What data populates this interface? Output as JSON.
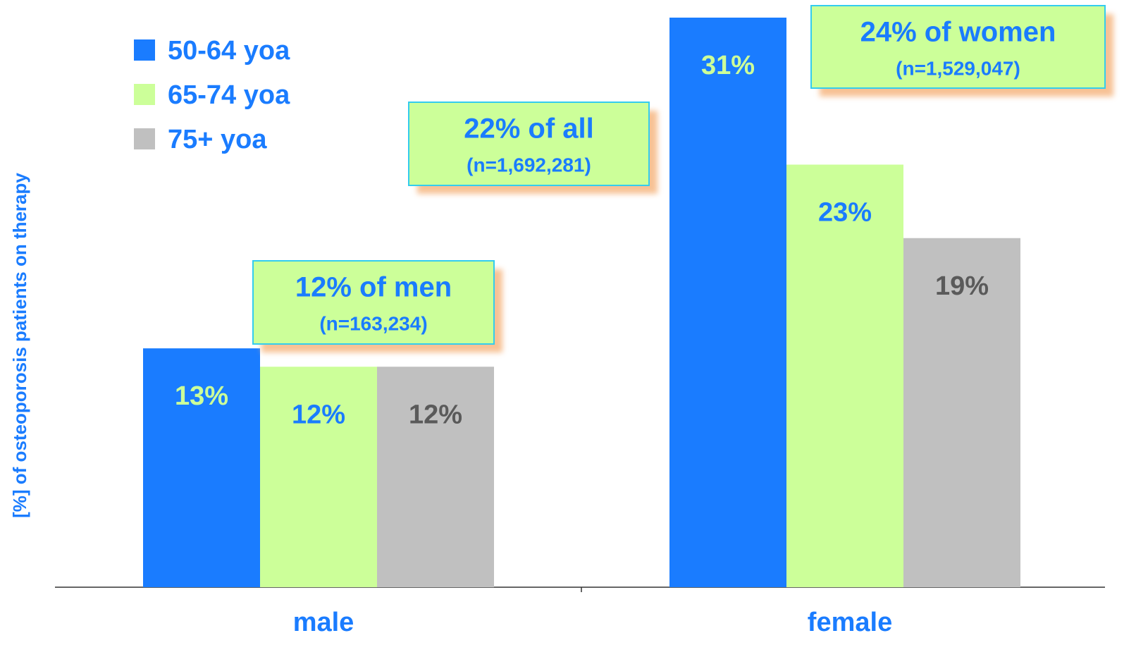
{
  "chart_data": {
    "type": "bar",
    "y_label": "[%] of osteoporosis patients on therapy",
    "categories": [
      "male",
      "female"
    ],
    "series": [
      {
        "name": "50-64 yoa",
        "color": "#1a7cff",
        "label_color": "#ccff99",
        "values": [
          13,
          31
        ],
        "value_labels": [
          "13%",
          "31%"
        ]
      },
      {
        "name": "65-74 yoa",
        "color": "#ccff99",
        "label_color": "#1a7cff",
        "values": [
          12,
          23
        ],
        "value_labels": [
          "12%",
          "23%"
        ]
      },
      {
        "name": "75+ yoa",
        "color": "#c0c0c0",
        "label_color": "#5a5a5a",
        "values": [
          12,
          19
        ],
        "value_labels": [
          "12%",
          "19%"
        ]
      }
    ],
    "ylim": [
      0,
      31
    ],
    "annotations": [
      {
        "text": "12% of men",
        "subtext": "(n=163,234)"
      },
      {
        "text": "22% of all",
        "subtext": "(n=1,692,281)"
      },
      {
        "text": "24% of women",
        "subtext": "(n=1,529,047)"
      }
    ]
  }
}
